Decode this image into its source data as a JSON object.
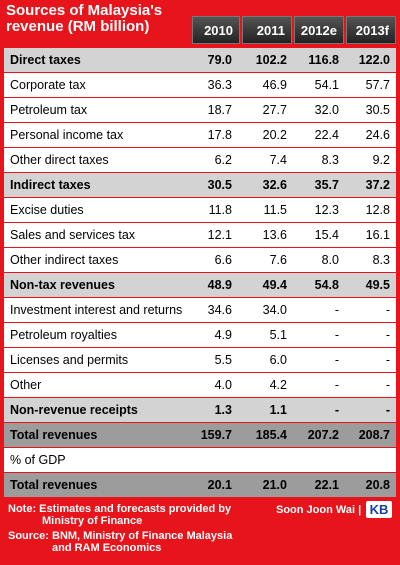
{
  "header": {
    "title": "Sources of Malaysia's revenue (RM billion)",
    "columns": [
      "2010",
      "2011",
      "2012e",
      "2013f"
    ]
  },
  "table": {
    "rows": [
      [
        "Direct taxes",
        "79.0",
        "102.2",
        "116.8",
        "122.0"
      ],
      [
        "Corporate tax",
        "36.3",
        "46.9",
        "54.1",
        "57.7"
      ],
      [
        "Petroleum tax",
        "18.7",
        "27.7",
        "32.0",
        "30.5"
      ],
      [
        "Personal income tax",
        "17.8",
        "20.2",
        "22.4",
        "24.6"
      ],
      [
        "Other direct taxes",
        "6.2",
        "7.4",
        "8.3",
        "9.2"
      ],
      [
        "Indirect taxes",
        "30.5",
        "32.6",
        "35.7",
        "37.2"
      ],
      [
        "Excise duties",
        "11.8",
        "11.5",
        "12.3",
        "12.8"
      ],
      [
        "Sales and services tax",
        "12.1",
        "13.6",
        "15.4",
        "16.1"
      ],
      [
        "Other indirect taxes",
        "6.6",
        "7.6",
        "8.0",
        "8.3"
      ],
      [
        "Non-tax revenues",
        "48.9",
        "49.4",
        "54.8",
        "49.5"
      ],
      [
        "Investment interest and returns",
        "34.6",
        "34.0",
        "-",
        "-"
      ],
      [
        "Petroleum royalties",
        "4.9",
        "5.1",
        "-",
        "-"
      ],
      [
        "Licenses and permits",
        "5.5",
        "6.0",
        "-",
        "-"
      ],
      [
        "Other",
        "4.0",
        "4.2",
        "-",
        "-"
      ],
      [
        "Non-revenue receipts",
        "1.3",
        "1.1",
        "-",
        "-"
      ],
      [
        "Total revenues",
        "159.7",
        "185.4",
        "207.2",
        "208.7"
      ],
      [
        "% of GDP"
      ],
      [
        "Total revenues",
        "20.1",
        "21.0",
        "22.1",
        "20.8"
      ]
    ]
  },
  "footer": {
    "note": "Note: Estimates and forecasts provided by Ministry of Finance",
    "source": "Source: BNM, Ministry of Finance Malaysia and RAM Economics",
    "author": "Soon Joon Wai |",
    "logo": "KB"
  }
}
